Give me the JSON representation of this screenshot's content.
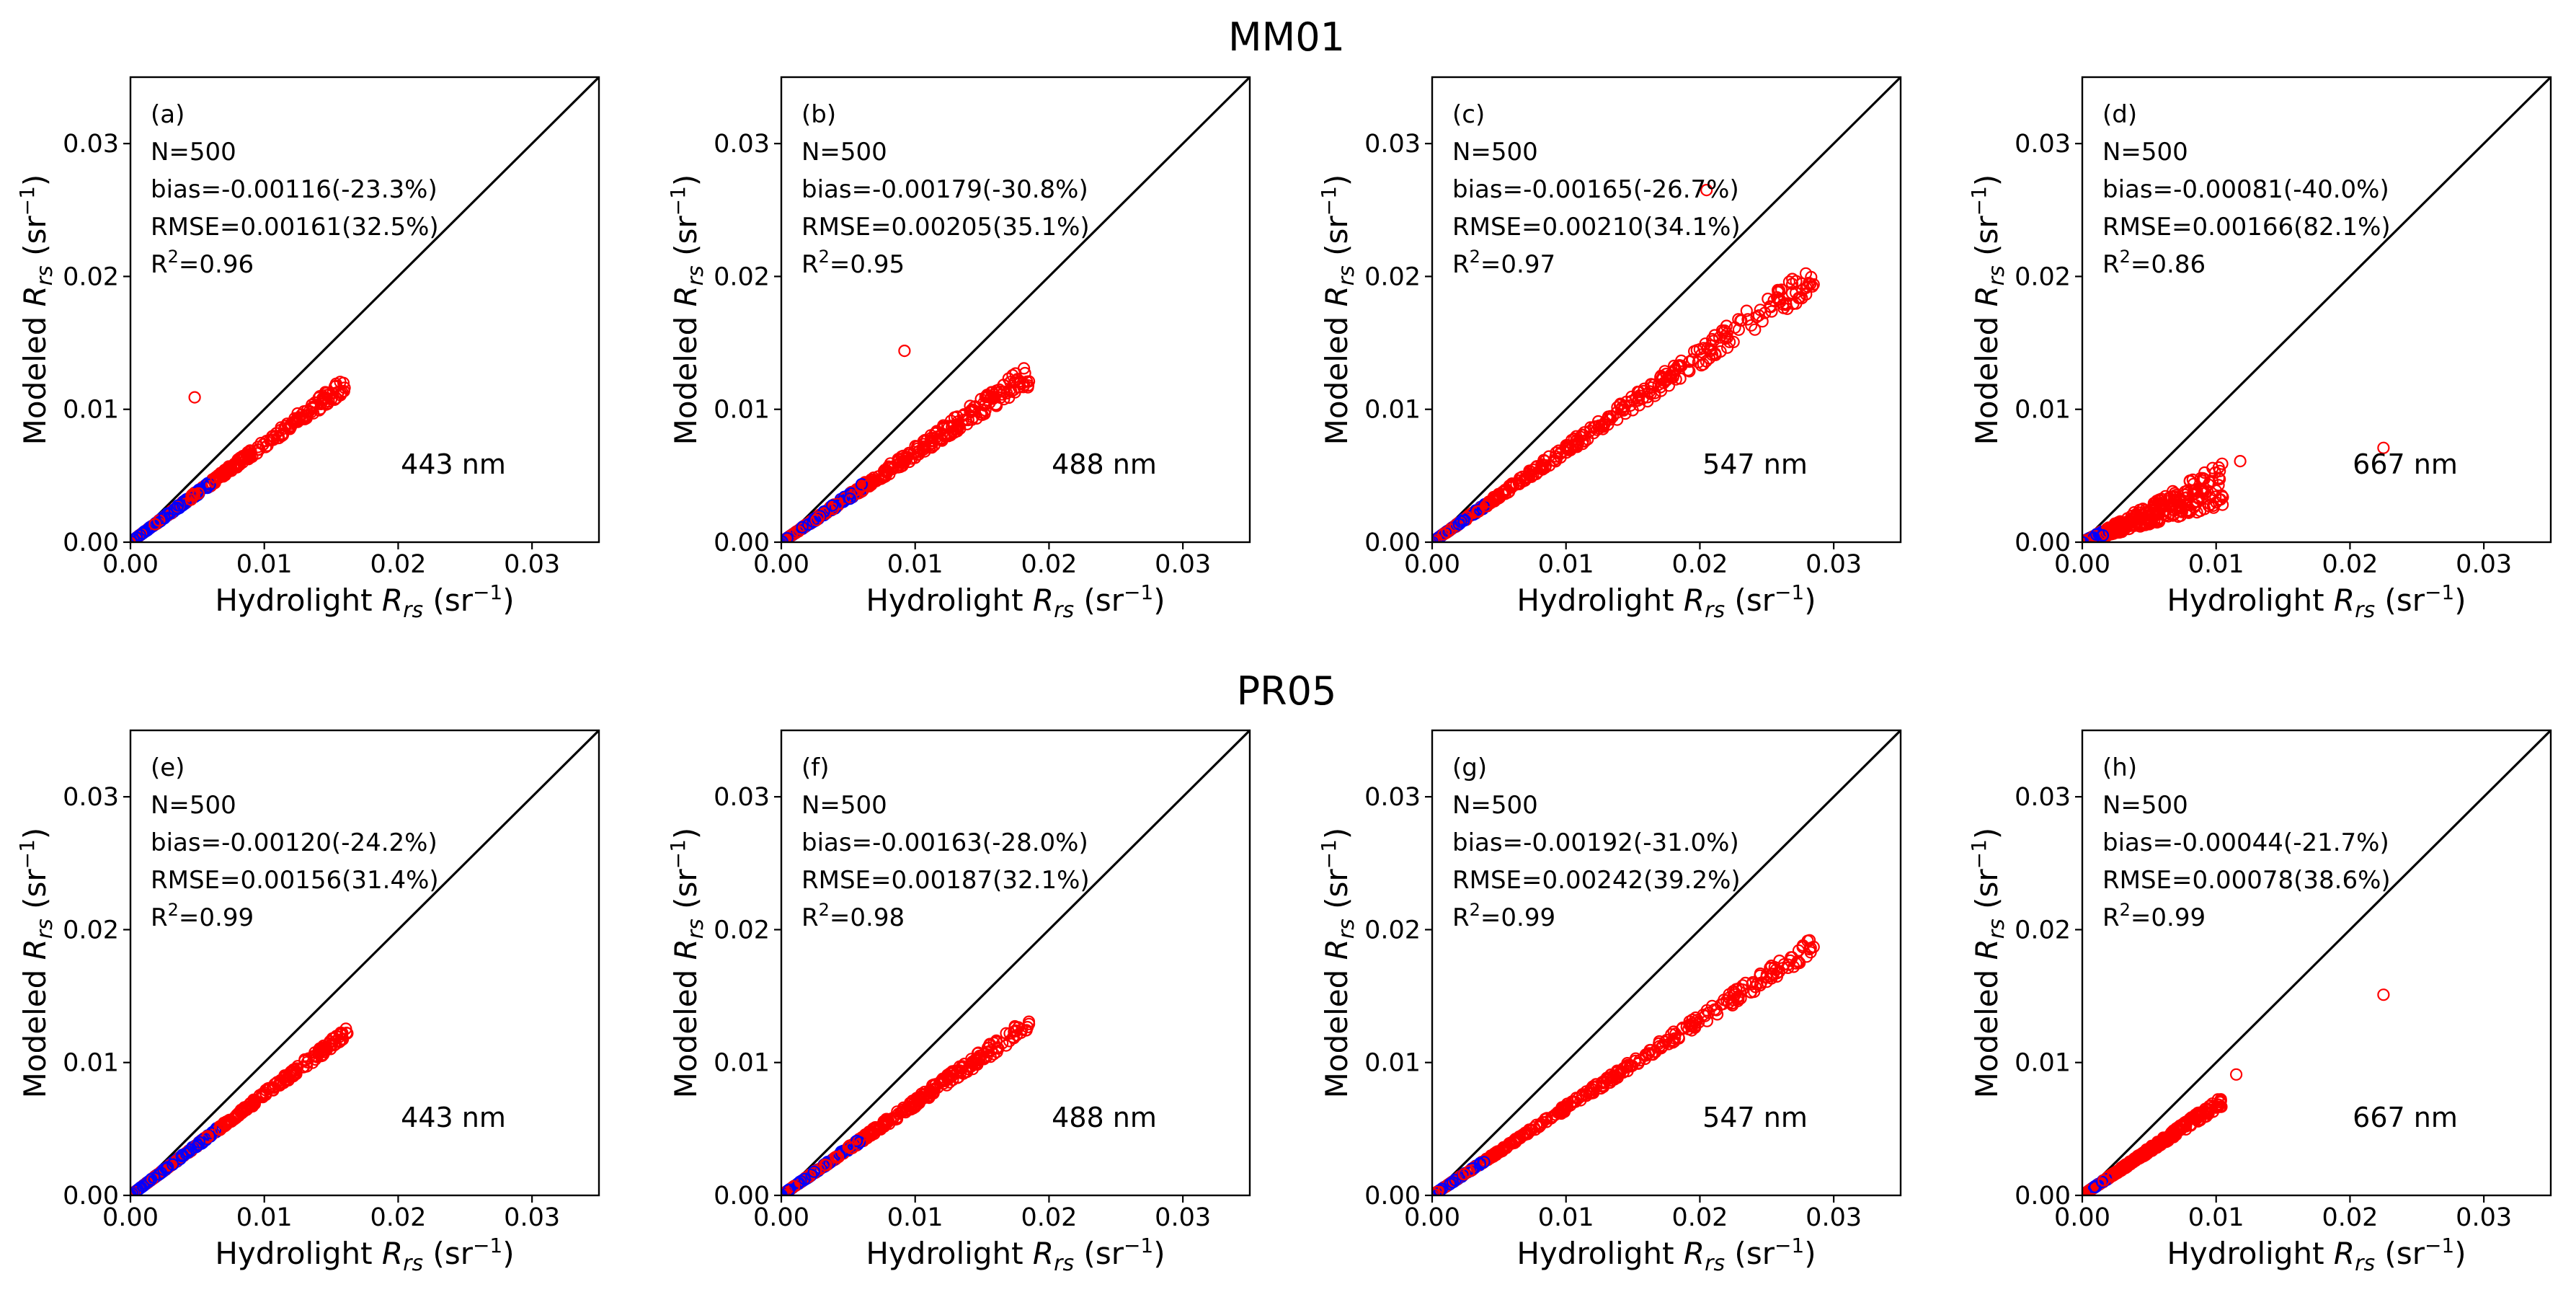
{
  "figure": {
    "rows": [
      {
        "title": "MM01"
      },
      {
        "title": "PR05"
      }
    ],
    "colors": {
      "frame": "#000000",
      "one_to_one_line": "#000000",
      "points_red": "#ff0000",
      "points_blue": "#0000ff"
    },
    "symbols": {
      "x_label_prefix": "Hydrolight ",
      "y_label_prefix": "Modeled ",
      "r_symbol": "R",
      "rs_sub": "rs",
      "unit_open": " (sr",
      "unit_exp": "−1",
      "unit_close": ")",
      "r2_prefix": "R",
      "r2_exp": "2"
    }
  },
  "chart_data": [
    {
      "id": "a",
      "row": 0,
      "col": 0,
      "type": "scatter",
      "panel_label": "(a)",
      "n_text": "N=500",
      "bias_text": "bias=-0.00116(-23.3%)",
      "rmse_text": "RMSE=0.00161(32.5%)",
      "r2_value": "=0.96",
      "wavelength": "443 nm",
      "xlim": [
        0,
        0.035
      ],
      "ylim": [
        0,
        0.035
      ],
      "xticks": [
        "0.00",
        "0.01",
        "0.02",
        "0.03"
      ],
      "yticks": [
        "0.00",
        "0.01",
        "0.02",
        "0.03"
      ],
      "slope": 0.74,
      "xmax": 0.016,
      "blue_xmax": 0.006,
      "spread": 0.05,
      "seed": 11,
      "outliers": [
        [
          0.0048,
          0.0109
        ],
        [
          0.0128,
          0.0096
        ]
      ]
    },
    {
      "id": "b",
      "row": 0,
      "col": 1,
      "type": "scatter",
      "panel_label": "(b)",
      "n_text": "N=500",
      "bias_text": "bias=-0.00179(-30.8%)",
      "rmse_text": "RMSE=0.00205(35.1%)",
      "r2_value": "=0.95",
      "wavelength": "488 nm",
      "xlim": [
        0,
        0.035
      ],
      "ylim": [
        0,
        0.035
      ],
      "xticks": [
        "0.00",
        "0.01",
        "0.02",
        "0.03"
      ],
      "yticks": [
        "0.00",
        "0.01",
        "0.02",
        "0.03"
      ],
      "slope": 0.68,
      "xmax": 0.0185,
      "blue_xmax": 0.006,
      "spread": 0.07,
      "seed": 23,
      "outliers": [
        [
          0.0092,
          0.0144
        ],
        [
          0.0175,
          0.0127
        ],
        [
          0.0185,
          0.0121
        ]
      ]
    },
    {
      "id": "c",
      "row": 0,
      "col": 2,
      "type": "scatter",
      "panel_label": "(c)",
      "n_text": "N=500",
      "bias_text": "bias=-0.00165(-26.7%)",
      "rmse_text": "RMSE=0.00210(34.1%)",
      "r2_value": "=0.97",
      "wavelength": "547 nm",
      "xlim": [
        0,
        0.035
      ],
      "ylim": [
        0,
        0.035
      ],
      "xticks": [
        "0.00",
        "0.01",
        "0.02",
        "0.03"
      ],
      "yticks": [
        "0.00",
        "0.01",
        "0.02",
        "0.03"
      ],
      "slope": 0.7,
      "xmax": 0.0285,
      "blue_xmax": 0.004,
      "spread": 0.06,
      "seed": 37,
      "outliers": [
        [
          0.0205,
          0.0265
        ],
        [
          0.0253,
          0.0177
        ],
        [
          0.0285,
          0.0194
        ]
      ]
    },
    {
      "id": "d",
      "row": 0,
      "col": 3,
      "type": "scatter",
      "panel_label": "(d)",
      "n_text": "N=500",
      "bias_text": "bias=-0.00081(-40.0%)",
      "rmse_text": "RMSE=0.00166(82.1%)",
      "r2_value": "=0.86",
      "wavelength": "667 nm",
      "xlim": [
        0,
        0.035
      ],
      "ylim": [
        0,
        0.035
      ],
      "xticks": [
        "0.00",
        "0.01",
        "0.02",
        "0.03"
      ],
      "yticks": [
        "0.00",
        "0.01",
        "0.02",
        "0.03"
      ],
      "slope": 0.42,
      "xmax": 0.0105,
      "blue_xmax": 0.0018,
      "spread": 0.38,
      "seed": 53,
      "outliers": [
        [
          0.0225,
          0.0071
        ],
        [
          0.0118,
          0.0061
        ]
      ]
    },
    {
      "id": "e",
      "row": 1,
      "col": 0,
      "type": "scatter",
      "panel_label": "(e)",
      "n_text": "N=500",
      "bias_text": "bias=-0.00120(-24.2%)",
      "rmse_text": "RMSE=0.00156(31.4%)",
      "r2_value": "=0.99",
      "wavelength": "443 nm",
      "xlim": [
        0,
        0.035
      ],
      "ylim": [
        0,
        0.035
      ],
      "xticks": [
        "0.00",
        "0.01",
        "0.02",
        "0.03"
      ],
      "yticks": [
        "0.00",
        "0.01",
        "0.02",
        "0.03"
      ],
      "slope": 0.76,
      "xmax": 0.0162,
      "blue_xmax": 0.0065,
      "spread": 0.035,
      "seed": 71,
      "outliers": [
        [
          0.0162,
          0.0122
        ]
      ]
    },
    {
      "id": "f",
      "row": 1,
      "col": 1,
      "type": "scatter",
      "panel_label": "(f)",
      "n_text": "N=500",
      "bias_text": "bias=-0.00163(-28.0%)",
      "rmse_text": "RMSE=0.00187(32.1%)",
      "r2_value": "=0.98",
      "wavelength": "488 nm",
      "xlim": [
        0,
        0.035
      ],
      "ylim": [
        0,
        0.035
      ],
      "xticks": [
        "0.00",
        "0.01",
        "0.02",
        "0.03"
      ],
      "yticks": [
        "0.00",
        "0.01",
        "0.02",
        "0.03"
      ],
      "slope": 0.7,
      "xmax": 0.0185,
      "blue_xmax": 0.006,
      "spread": 0.05,
      "seed": 89,
      "outliers": [
        [
          0.0185,
          0.0129
        ],
        [
          0.0168,
          0.0122
        ],
        [
          0.0148,
          0.0105
        ]
      ]
    },
    {
      "id": "g",
      "row": 1,
      "col": 2,
      "type": "scatter",
      "panel_label": "(g)",
      "n_text": "N=500",
      "bias_text": "bias=-0.00192(-31.0%)",
      "rmse_text": "RMSE=0.00242(39.2%)",
      "r2_value": "=0.99",
      "wavelength": "547 nm",
      "xlim": [
        0,
        0.035
      ],
      "ylim": [
        0,
        0.035
      ],
      "xticks": [
        "0.00",
        "0.01",
        "0.02",
        "0.03"
      ],
      "yticks": [
        "0.00",
        "0.01",
        "0.02",
        "0.03"
      ],
      "slope": 0.66,
      "xmax": 0.0285,
      "blue_xmax": 0.004,
      "spread": 0.035,
      "seed": 97,
      "outliers": [
        [
          0.0285,
          0.0187
        ],
        [
          0.0253,
          0.0165
        ],
        [
          0.0232,
          0.0158
        ]
      ]
    },
    {
      "id": "h",
      "row": 1,
      "col": 3,
      "type": "scatter",
      "panel_label": "(h)",
      "n_text": "N=500",
      "bias_text": "bias=-0.00044(-21.7%)",
      "rmse_text": "RMSE=0.00078(38.6%)",
      "r2_value": "=0.99",
      "wavelength": "667 nm",
      "xlim": [
        0,
        0.035
      ],
      "ylim": [
        0,
        0.035
      ],
      "xticks": [
        "0.00",
        "0.01",
        "0.02",
        "0.03"
      ],
      "yticks": [
        "0.00",
        "0.01",
        "0.02",
        "0.03"
      ],
      "slope": 0.68,
      "xmax": 0.0105,
      "blue_xmax": 0.002,
      "spread": 0.06,
      "seed": 131,
      "outliers": [
        [
          0.0225,
          0.0151
        ],
        [
          0.0115,
          0.0091
        ]
      ]
    }
  ]
}
